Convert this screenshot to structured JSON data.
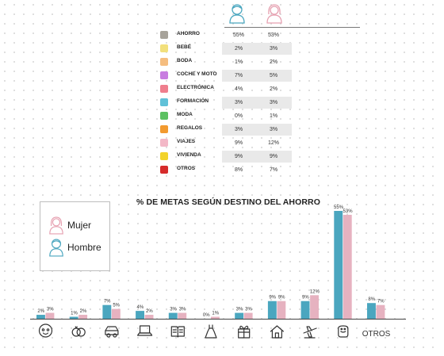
{
  "table": {
    "rows": [
      {
        "label": "AHORRO",
        "hombre": "55%",
        "mujer": "53%",
        "color": "#a7a39a",
        "shaded": false
      },
      {
        "label": "BEBÉ",
        "hombre": "2%",
        "mujer": "3%",
        "color": "#f2e07c",
        "shaded": true
      },
      {
        "label": "BODA",
        "hombre": "1%",
        "mujer": "2%",
        "color": "#f5bd7f",
        "shaded": false
      },
      {
        "label": "COCHE Y MOTO",
        "hombre": "7%",
        "mujer": "5%",
        "color": "#c87de0",
        "shaded": true
      },
      {
        "label": "ELECTRÓNICA",
        "hombre": "4%",
        "mujer": "2%",
        "color": "#ef7e8d",
        "shaded": false
      },
      {
        "label": "FORMACIÓN",
        "hombre": "3%",
        "mujer": "3%",
        "color": "#60c1d8",
        "shaded": true
      },
      {
        "label": "MODA",
        "hombre": "0%",
        "mujer": "1%",
        "color": "#5cc162",
        "shaded": false
      },
      {
        "label": "REGALOS",
        "hombre": "3%",
        "mujer": "3%",
        "color": "#f29a2f",
        "shaded": true
      },
      {
        "label": "VIAJES",
        "hombre": "9%",
        "mujer": "12%",
        "color": "#f3b8c7",
        "shaded": false
      },
      {
        "label": "VIVIENDA",
        "hombre": "9%",
        "mujer": "9%",
        "color": "#f2d32b",
        "shaded": true
      },
      {
        "label": "OTROS",
        "hombre": "8%",
        "mujer": "7%",
        "color": "#d62b2b",
        "shaded": false
      }
    ]
  },
  "chart": {
    "title": "% DE METAS SEGÚN DESTINO DEL AHORRO",
    "legend": [
      {
        "label": "Mujer",
        "icon": "woman-icon",
        "color": "#e6a0b0"
      },
      {
        "label": "Hombre",
        "icon": "man-icon",
        "color": "#4aa6bf"
      }
    ],
    "otros_label": "OTROS"
  },
  "chart_data": {
    "type": "bar",
    "categories": [
      "bebé",
      "boda",
      "coche y moto",
      "electrónica",
      "formación",
      "moda",
      "regalos",
      "vivienda",
      "viajes",
      "ahorro",
      "OTROS"
    ],
    "category_icons": [
      "baby-icon",
      "rings-icon",
      "car-icon",
      "laptop-icon",
      "book-icon",
      "dress-icon",
      "gift-icon",
      "house-icon",
      "plane-icon",
      "piggy-bank-icon",
      "text-otros"
    ],
    "series": [
      {
        "name": "Hombre",
        "values": [
          2,
          1,
          7,
          4,
          3,
          0,
          3,
          9,
          9,
          55,
          8
        ],
        "color": "#4aa6bf"
      },
      {
        "name": "Mujer",
        "values": [
          3,
          2,
          5,
          2,
          3,
          1,
          3,
          9,
          12,
          53,
          7
        ],
        "color": "#e6b2c0"
      }
    ],
    "title": "% DE METAS SEGÚN DESTINO DEL AHORRO",
    "ylim": [
      0,
      55
    ],
    "legend_position": "left",
    "grid": false
  }
}
